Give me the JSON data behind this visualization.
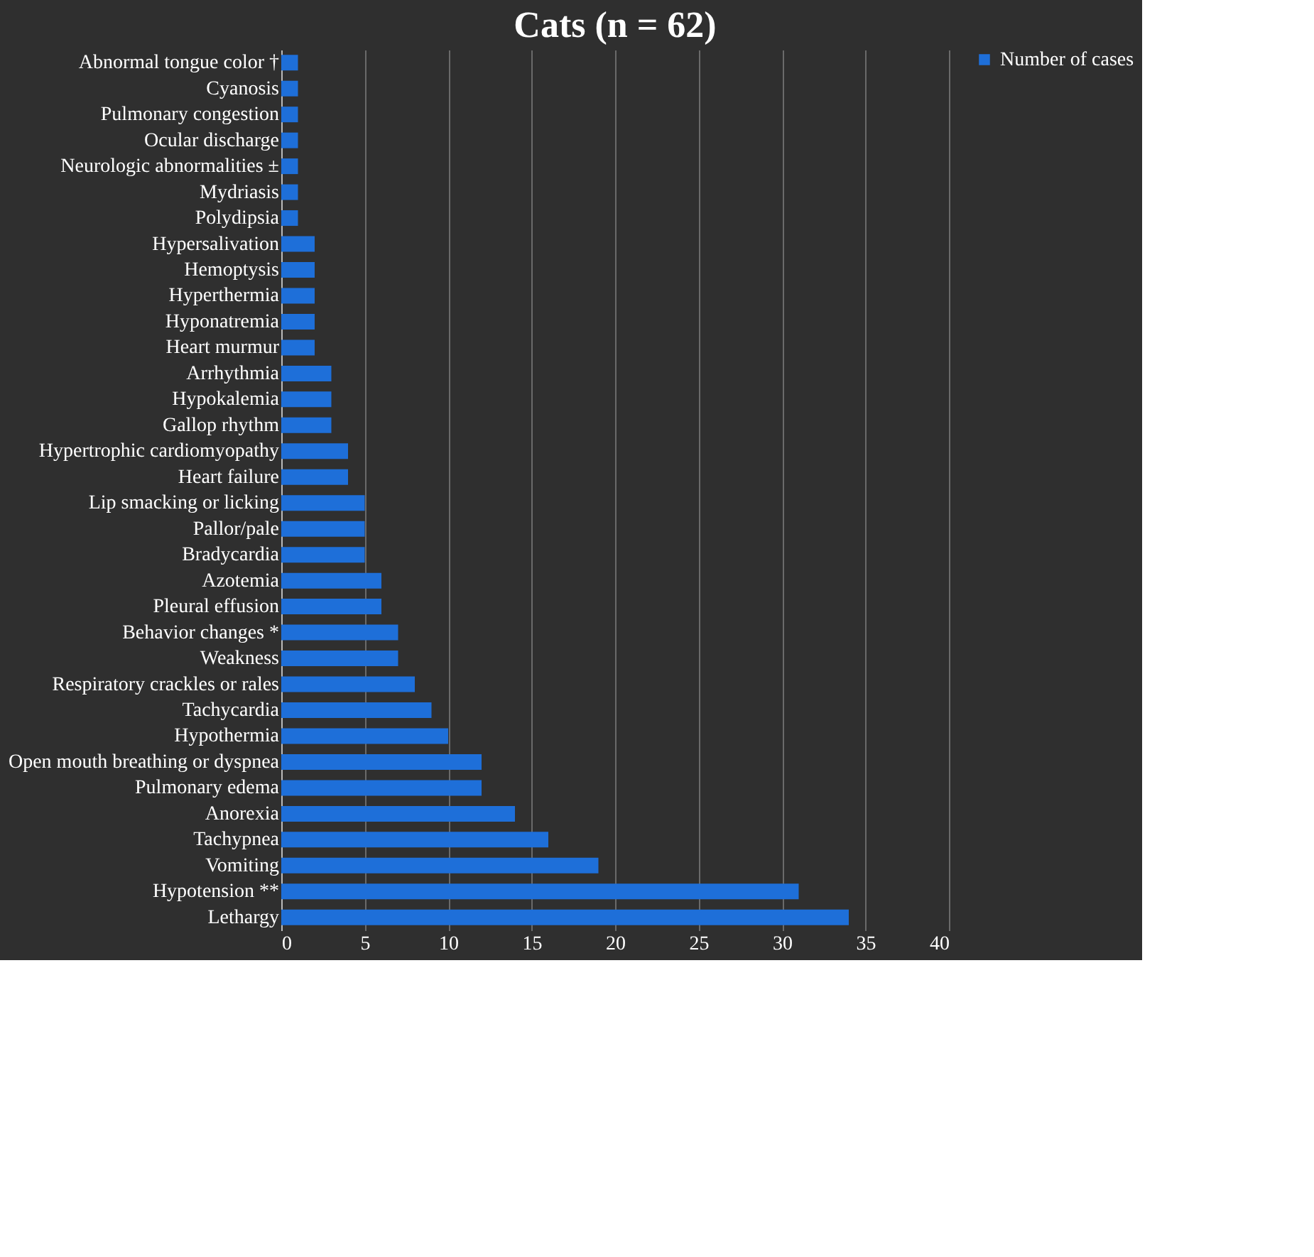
{
  "chart_data": {
    "type": "bar",
    "orientation": "horizontal",
    "title": "Cats (n = 62)",
    "categories": [
      "Abnormal tongue color †",
      "Cyanosis",
      "Pulmonary congestion",
      "Ocular discharge",
      "Neurologic abnormalities ±",
      "Mydriasis",
      "Polydipsia",
      "Hypersalivation",
      "Hemoptysis",
      "Hyperthermia",
      "Hyponatremia",
      "Heart murmur",
      "Arrhythmia",
      "Hypokalemia",
      "Gallop rhythm",
      "Hypertrophic cardiomyopathy",
      "Heart failure",
      "Lip smacking or licking",
      "Pallor/pale",
      "Bradycardia",
      "Azotemia",
      "Pleural effusion",
      "Behavior changes *",
      "Weakness",
      "Respiratory crackles or rales",
      "Tachycardia",
      "Hypothermia",
      "Open mouth breathing or dyspnea",
      "Pulmonary edema",
      "Anorexia",
      "Tachypnea",
      "Vomiting",
      "Hypotension **",
      "Lethargy"
    ],
    "series": [
      {
        "name": "Number of cases",
        "color": "#1e6fd9",
        "values": [
          1,
          1,
          1,
          1,
          1,
          1,
          1,
          2,
          2,
          2,
          2,
          2,
          3,
          3,
          3,
          4,
          4,
          5,
          5,
          5,
          6,
          6,
          7,
          7,
          8,
          9,
          10,
          12,
          12,
          14,
          16,
          19,
          31,
          34
        ]
      }
    ],
    "xlim": [
      0,
      40
    ],
    "xticks": [
      0,
      5,
      10,
      15,
      20,
      25,
      30,
      35,
      40
    ],
    "grid": "x",
    "legend": "right"
  }
}
